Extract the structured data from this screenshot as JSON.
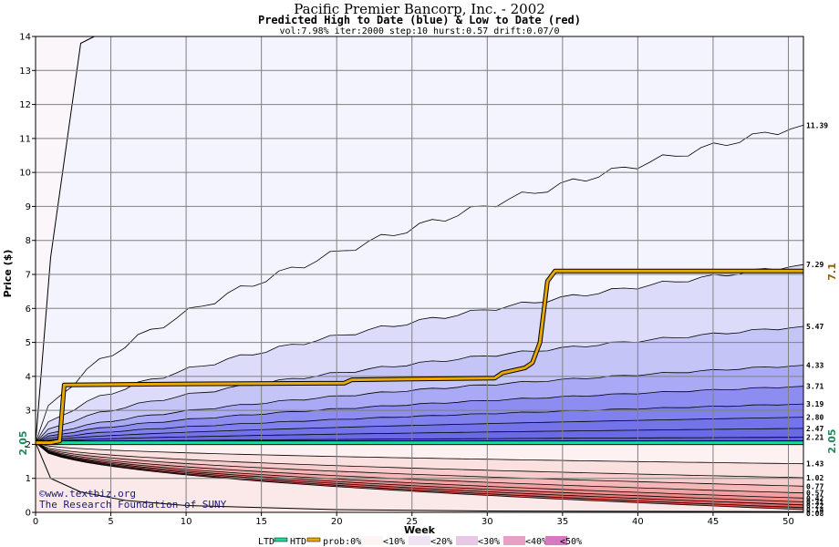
{
  "title": "Pacific Premier Bancorp, Inc. - 2002",
  "subtitle": "Predicted High to Date (blue) &  Low to Date (red)",
  "params": "vol:7.98% iter:2000 step:10 hurst:0.57 drift:0.07/0",
  "credits": [
    "©www.textbiz.org",
    "The Research Foundation of SUNY"
  ],
  "legend": {
    "ltd_label": "LTD",
    "htd_label": "HTD",
    "prob_label": "prob:0%",
    "buckets": [
      "<10%",
      "<20%",
      "<30%",
      "<40%",
      "<50%"
    ]
  },
  "chart_data": {
    "type": "area",
    "title": "Pacific Premier Bancorp, Inc. - 2002",
    "subtitle": "Predicted High to Date (blue) &  Low to Date (red)",
    "xlabel": "Week",
    "ylabel": "Price ($)",
    "xlim": [
      0,
      51
    ],
    "ylim": [
      0,
      14
    ],
    "xticks": [
      0,
      5,
      10,
      15,
      20,
      25,
      30,
      35,
      40,
      45,
      50
    ],
    "yticks": [
      0,
      1,
      2,
      3,
      4,
      5,
      6,
      7,
      8,
      9,
      10,
      11,
      12,
      13,
      14
    ],
    "grid": true,
    "start_price": 2.05,
    "start_price_label": "2.05",
    "htd_end_label": "7.1",
    "ltd_end_label": "2.05",
    "high_quantiles": [
      {
        "label": "11.39",
        "end": 11.39
      },
      {
        "label": "7.29",
        "end": 7.29
      },
      {
        "label": "5.47",
        "end": 5.47
      },
      {
        "label": "4.33",
        "end": 4.33
      },
      {
        "label": "3.71",
        "end": 3.71
      },
      {
        "label": "3.19",
        "end": 3.19
      },
      {
        "label": "2.80",
        "end": 2.8
      },
      {
        "label": "2.47",
        "end": 2.47
      },
      {
        "label": "2.21",
        "end": 2.21
      }
    ],
    "low_quantiles": [
      {
        "label": "1.43",
        "end": 1.43
      },
      {
        "label": "1.02",
        "end": 1.02
      },
      {
        "label": "0.77",
        "end": 0.77
      },
      {
        "label": "0.57",
        "end": 0.57
      },
      {
        "label": "0.42",
        "end": 0.42
      },
      {
        "label": "0.31",
        "end": 0.31
      },
      {
        "label": "0.22",
        "end": 0.22
      },
      {
        "label": "0.14",
        "end": 0.14
      },
      {
        "label": "0.08",
        "end": 0.08
      }
    ],
    "htd_series": {
      "x": [
        0,
        1,
        1.6,
        1.9,
        10,
        20.5,
        21,
        25,
        30.5,
        31,
        32.5,
        33,
        33.5,
        34,
        34.5,
        51
      ],
      "y": [
        2.05,
        2.05,
        2.1,
        3.75,
        3.78,
        3.8,
        3.9,
        3.92,
        3.95,
        4.1,
        4.25,
        4.4,
        5.0,
        6.8,
        7.1,
        7.1
      ]
    },
    "ltd_series": {
      "x": [
        0,
        51
      ],
      "y": [
        2.05,
        2.05
      ]
    },
    "max_envelope": {
      "x": [
        0,
        1,
        3,
        3.9
      ],
      "y": [
        2.05,
        7.5,
        13.8,
        14
      ]
    },
    "min_envelope": {
      "x": [
        0,
        1,
        3,
        6,
        10,
        20,
        30,
        51
      ],
      "y": [
        2.05,
        1.0,
        0.6,
        0.35,
        0.2,
        0.08,
        0.04,
        0.02
      ]
    },
    "colors": {
      "high_bands": [
        "#f4f4fe",
        "#dcdcfa",
        "#c4c4f7",
        "#a9a9f5",
        "#8d8df1",
        "#8080ee",
        "#7373ea",
        "#6a6ae6",
        "#6060e0"
      ],
      "low_bands": [
        "#fdf1f1",
        "#fbe0e0",
        "#f8cccc",
        "#f5b7b7",
        "#f2a2a2",
        "#ef8d8d",
        "#ec7878",
        "#e86464",
        "#e25050"
      ],
      "htd_line": "#e8a800",
      "ltd_line": "#1ed6a0",
      "grid": "#808080",
      "start_label": "#1f8a5a",
      "htd_label": "#8a6a00"
    }
  }
}
